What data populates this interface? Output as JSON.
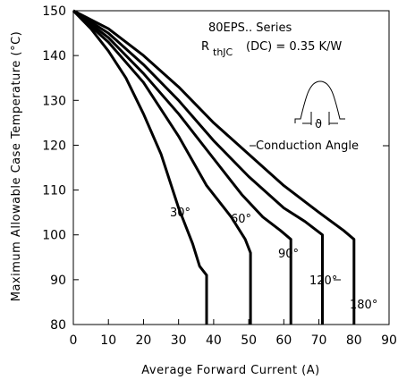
{
  "chart_data": {
    "type": "line",
    "xlabel": "Average Forward Current (A)",
    "ylabel": "Maximum Allowable Case Temperature (°C)",
    "xlim": [
      0,
      90
    ],
    "ylim": [
      80,
      150
    ],
    "x_ticks": [
      0,
      10,
      20,
      30,
      40,
      50,
      60,
      70,
      80,
      90
    ],
    "y_ticks": [
      80,
      90,
      100,
      110,
      120,
      130,
      140,
      150
    ],
    "grid": false,
    "annotations": {
      "series_name": "80EPS.. Series",
      "rth_prefix": "R",
      "rth_sub": "thJC",
      "rth_suffix": "(DC) = 0.35 K/W",
      "conduction_label": "Conduction Angle",
      "theta_symbol": "ϑ"
    },
    "series": [
      {
        "label": "30°",
        "points": [
          [
            0,
            150
          ],
          [
            5,
            146
          ],
          [
            10,
            141
          ],
          [
            15,
            135
          ],
          [
            20,
            127
          ],
          [
            25,
            118
          ],
          [
            30,
            106
          ],
          [
            34,
            98
          ],
          [
            36,
            93
          ],
          [
            38,
            91
          ],
          [
            38,
            80
          ]
        ]
      },
      {
        "label": "60°",
        "points": [
          [
            0,
            150
          ],
          [
            10,
            143
          ],
          [
            20,
            134
          ],
          [
            30,
            122
          ],
          [
            38,
            111
          ],
          [
            45,
            104
          ],
          [
            49,
            99
          ],
          [
            50.5,
            96
          ],
          [
            50.5,
            80
          ]
        ]
      },
      {
        "label": "90°",
        "points": [
          [
            0,
            150
          ],
          [
            10,
            144
          ],
          [
            20,
            136
          ],
          [
            30,
            127
          ],
          [
            40,
            117
          ],
          [
            48,
            109
          ],
          [
            54,
            104
          ],
          [
            59,
            101
          ],
          [
            62,
            99
          ],
          [
            62,
            80
          ]
        ]
      },
      {
        "label": "120°",
        "points": [
          [
            0,
            150
          ],
          [
            10,
            145
          ],
          [
            20,
            138
          ],
          [
            30,
            130
          ],
          [
            40,
            121
          ],
          [
            50,
            113
          ],
          [
            60,
            106
          ],
          [
            66,
            103
          ],
          [
            71,
            100
          ],
          [
            71,
            80
          ]
        ]
      },
      {
        "label": "180°",
        "points": [
          [
            0,
            150
          ],
          [
            10,
            146
          ],
          [
            20,
            140
          ],
          [
            30,
            133
          ],
          [
            40,
            125
          ],
          [
            50,
            118
          ],
          [
            60,
            111
          ],
          [
            70,
            105
          ],
          [
            77,
            101
          ],
          [
            80,
            99
          ],
          [
            80,
            80
          ]
        ]
      }
    ]
  }
}
